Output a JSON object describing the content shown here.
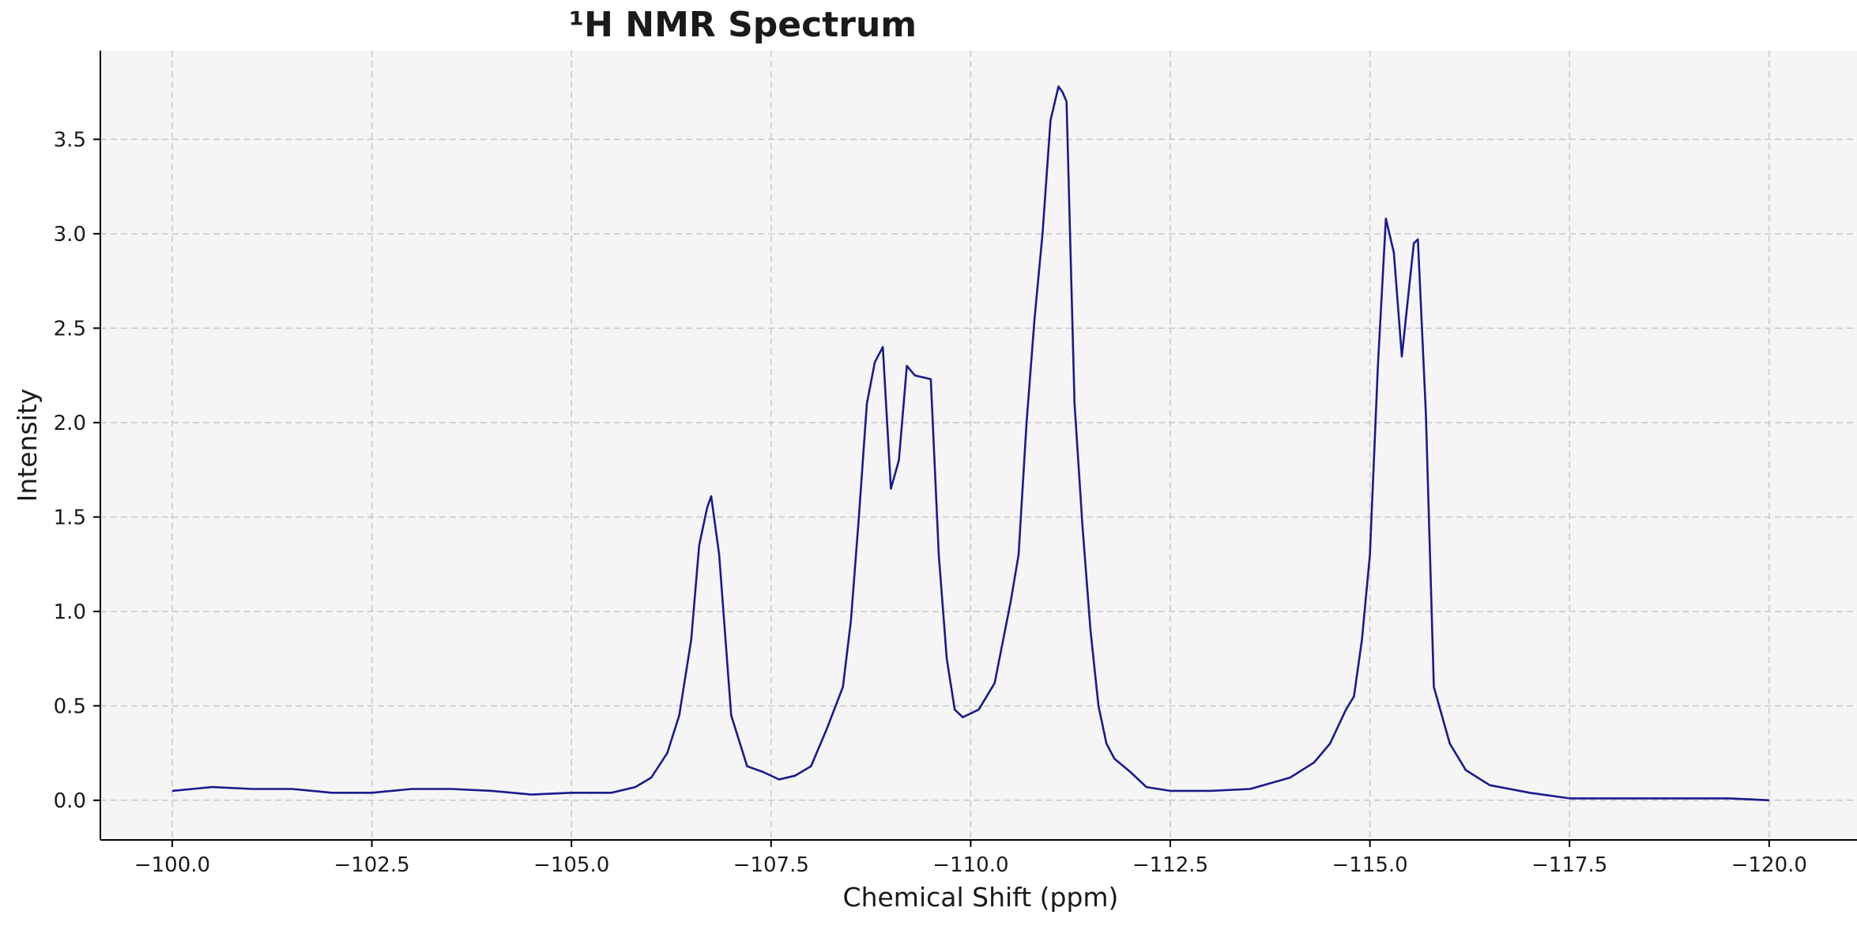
{
  "chart_data": {
    "type": "line",
    "title": "¹H NMR Spectrum",
    "xlabel": "Chemical Shift (ppm)",
    "ylabel": "Intensity",
    "xlim": [
      -99.1,
      -121.1
    ],
    "ylim": [
      -0.21,
      3.97
    ],
    "x_reversed": true,
    "grid": true,
    "colors": {
      "line": "#1a1a8c",
      "plot_background": "#f5f5f5"
    },
    "x_ticks": [
      {
        "value": -100.0,
        "label": "−100.0"
      },
      {
        "value": -102.5,
        "label": "−102.5"
      },
      {
        "value": -105.0,
        "label": "−105.0"
      },
      {
        "value": -107.5,
        "label": "−107.5"
      },
      {
        "value": -110.0,
        "label": "−110.0"
      },
      {
        "value": -112.5,
        "label": "−112.5"
      },
      {
        "value": -115.0,
        "label": "−115.0"
      },
      {
        "value": -117.5,
        "label": "−117.5"
      },
      {
        "value": -120.0,
        "label": "−120.0"
      }
    ],
    "y_ticks": [
      {
        "value": 0.0,
        "label": "0.0"
      },
      {
        "value": 0.5,
        "label": "0.5"
      },
      {
        "value": 1.0,
        "label": "1.0"
      },
      {
        "value": 1.5,
        "label": "1.5"
      },
      {
        "value": 2.0,
        "label": "2.0"
      },
      {
        "value": 2.5,
        "label": "2.5"
      },
      {
        "value": 3.0,
        "label": "3.0"
      },
      {
        "value": 3.5,
        "label": "3.5"
      }
    ],
    "series": [
      {
        "x": [
          -100.0,
          -100.5,
          -101.0,
          -101.5,
          -102.0,
          -102.5,
          -103.0,
          -103.5,
          -104.0,
          -104.5,
          -105.0,
          -105.5,
          -105.8,
          -106.0,
          -106.2,
          -106.35,
          -106.5,
          -106.6,
          -106.7,
          -106.75,
          -106.85,
          -107.0,
          -107.2,
          -107.4,
          -107.6,
          -107.8,
          -108.0,
          -108.2,
          -108.4,
          -108.5,
          -108.6,
          -108.7,
          -108.8,
          -108.9,
          -109.0,
          -109.1,
          -109.2,
          -109.3,
          -109.4,
          -109.5,
          -109.6,
          -109.7,
          -109.8,
          -109.9,
          -110.0,
          -110.1,
          -110.3,
          -110.5,
          -110.6,
          -110.7,
          -110.8,
          -110.9,
          -111.0,
          -111.1,
          -111.15,
          -111.2,
          -111.3,
          -111.4,
          -111.5,
          -111.6,
          -111.7,
          -111.8,
          -112.0,
          -112.2,
          -112.5,
          -113.0,
          -113.5,
          -114.0,
          -114.3,
          -114.5,
          -114.7,
          -114.8,
          -114.9,
          -115.0,
          -115.1,
          -115.2,
          -115.3,
          -115.4,
          -115.5,
          -115.55,
          -115.6,
          -115.7,
          -115.8,
          -116.0,
          -116.2,
          -116.5,
          -117.0,
          -117.5,
          -118.0,
          -118.5,
          -119.0,
          -119.5,
          -120.0
        ],
        "y": [
          0.05,
          0.07,
          0.06,
          0.06,
          0.04,
          0.04,
          0.06,
          0.06,
          0.05,
          0.03,
          0.04,
          0.04,
          0.07,
          0.12,
          0.25,
          0.45,
          0.85,
          1.35,
          1.55,
          1.61,
          1.3,
          0.45,
          0.18,
          0.15,
          0.11,
          0.13,
          0.18,
          0.38,
          0.6,
          0.95,
          1.5,
          2.1,
          2.32,
          2.4,
          1.65,
          1.8,
          2.3,
          2.25,
          2.24,
          2.23,
          1.3,
          0.75,
          0.48,
          0.44,
          0.46,
          0.48,
          0.62,
          1.05,
          1.3,
          2.0,
          2.55,
          3.0,
          3.6,
          3.78,
          3.75,
          3.7,
          2.1,
          1.45,
          0.9,
          0.5,
          0.3,
          0.22,
          0.15,
          0.07,
          0.05,
          0.05,
          0.06,
          0.12,
          0.2,
          0.3,
          0.48,
          0.55,
          0.85,
          1.3,
          2.3,
          3.08,
          2.9,
          2.35,
          2.75,
          2.95,
          2.97,
          2.05,
          0.6,
          0.3,
          0.16,
          0.08,
          0.04,
          0.01,
          0.01,
          0.01,
          0.01,
          0.01,
          0.0
        ]
      }
    ]
  }
}
